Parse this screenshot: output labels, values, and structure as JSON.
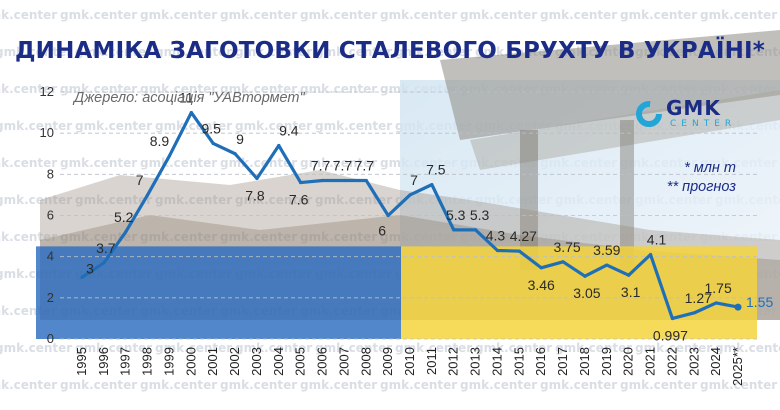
{
  "title": "ДИНАМІКА ЗАГОТОВКИ СТАЛЕВОГО БРУХТУ В УКРАЇНІ*",
  "source": "Джерело: асоціація \"УАВтормет\"",
  "logo": {
    "line1": "GMK",
    "line2": "CENTER",
    "icon": "gmk-ring-logo"
  },
  "watermark": "gmk.center",
  "notes": {
    "units": "* млн т",
    "forecast": "** прогноз"
  },
  "colors": {
    "line": "#1f6fb8",
    "title": "#1b2c86",
    "flag_blue": "#2d6cc0",
    "flag_yellow": "#f4d33c"
  },
  "chart_data": {
    "type": "line",
    "title": "ДИНАМІКА ЗАГОТОВКИ СТАЛЕВОГО БРУХТУ В УКРАЇНІ*",
    "xlabel": "",
    "ylabel": "",
    "ylim": [
      0,
      12
    ],
    "yticks": [
      0,
      2,
      4,
      6,
      8,
      10,
      12
    ],
    "grid": true,
    "x": [
      "1995",
      "1996",
      "1997",
      "1998",
      "1999",
      "2000",
      "2001",
      "2002",
      "2003",
      "2004",
      "2005",
      "2006",
      "2007",
      "2008",
      "2009",
      "2010",
      "2011",
      "2012",
      "2013",
      "2014",
      "2015",
      "2016",
      "2017",
      "2018",
      "2019",
      "2020",
      "2021",
      "2022",
      "2023",
      "2024",
      "2025"
    ],
    "values": [
      3,
      3.7,
      5.2,
      7,
      8.9,
      11,
      9.5,
      9,
      7.8,
      9.4,
      7.6,
      7.7,
      7.7,
      7.7,
      6,
      7,
      7.5,
      5.3,
      5.3,
      4.3,
      4.27,
      3.46,
      3.75,
      3.05,
      3.59,
      3.1,
      4.1,
      0.997,
      1.27,
      1.75,
      1.55
    ],
    "labels": [
      "3",
      "3.7",
      "5.2",
      "7",
      "8.9",
      "11",
      "9.5",
      "9",
      "7.8",
      "9.4",
      "7.6",
      "7.7",
      "7.7",
      "7.7",
      "6",
      "7",
      "7.5",
      "5.3",
      "5.3",
      "4.3",
      "4.27",
      "3.46",
      "3.75",
      "3.05",
      "3.59",
      "3.1",
      "4.1",
      "0.997",
      "1.27",
      "1.75",
      "1.55"
    ],
    "x_tick_labels": [
      "1995",
      "1996",
      "1997",
      "1998",
      "1999",
      "2000",
      "2001",
      "2002",
      "2003",
      "2004",
      "2005",
      "2006",
      "2007",
      "2008",
      "2009",
      "2010",
      "2011",
      "2012",
      "2013",
      "2014",
      "2015",
      "2016",
      "2017",
      "2018",
      "2019",
      "2020",
      "2021",
      "2022",
      "2023",
      "2024",
      "2025**"
    ],
    "forecast_from": "2025"
  }
}
